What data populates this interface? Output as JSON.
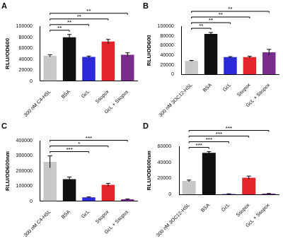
{
  "chart_data": [
    {
      "type": "bar",
      "title": "A",
      "ylabel": "RLU/OD600",
      "categories": [
        "300 nM C4-HSL",
        "BSA",
        "GcL",
        "Ssopox",
        "GcL + Ssopox"
      ],
      "values": [
        46000,
        80000,
        44000,
        72000,
        48000
      ],
      "errors": [
        2000,
        5000,
        1500,
        4000,
        3500
      ],
      "colors": [
        "#c8c8c8",
        "#111111",
        "#2a2ad6",
        "#e3262b",
        "#7b2d8e"
      ],
      "ylim": [
        0,
        100000
      ],
      "yticks": [
        0,
        20000,
        40000,
        60000,
        80000,
        100000
      ],
      "significance": [
        {
          "from": 0,
          "to": 1,
          "label": "**"
        },
        {
          "from": 0,
          "to": 2,
          "label": "**"
        },
        {
          "from": 0,
          "to": 3,
          "label": "**"
        },
        {
          "from": 0,
          "to": 4,
          "label": "**"
        }
      ]
    },
    {
      "type": "bar",
      "title": "B",
      "ylabel": "RLU/OD600",
      "categories": [
        "300 nM 3OC12-HSL",
        "BSA",
        "GcL",
        "Ssopox",
        "GcL + Ssopox"
      ],
      "values": [
        28000,
        84000,
        36000,
        36000,
        46000
      ],
      "errors": [
        1000,
        3000,
        1000,
        1500,
        6000
      ],
      "colors": [
        "#c8c8c8",
        "#111111",
        "#2a2ad6",
        "#e3262b",
        "#7b2d8e"
      ],
      "ylim": [
        0,
        100000
      ],
      "yticks": [
        0,
        20000,
        40000,
        60000,
        80000,
        100000
      ],
      "significance": [
        {
          "from": 0,
          "to": 1,
          "label": "**"
        },
        {
          "from": 0,
          "to": 2,
          "label": "**"
        },
        {
          "from": 0,
          "to": 3,
          "label": "**"
        },
        {
          "from": 0,
          "to": 4,
          "label": "**"
        }
      ]
    },
    {
      "type": "bar",
      "title": "C",
      "ylabel": "RLU/OD600nm",
      "categories": [
        "300 nM C4-HSL",
        "BSA",
        "GcL",
        "Ssopox",
        "GcL + Ssopox"
      ],
      "values": [
        260000,
        145000,
        25000,
        108000,
        12000
      ],
      "errors": [
        40000,
        15000,
        3000,
        10000,
        2000
      ],
      "colors": [
        "#c8c8c8",
        "#111111",
        "#2a2ad6",
        "#e3262b",
        "#7b2d8e"
      ],
      "ylim": [
        0,
        400000
      ],
      "yticks": [
        0,
        100000,
        200000,
        300000,
        400000
      ],
      "significance": [
        {
          "from": 0,
          "to": 2,
          "label": "***"
        },
        {
          "from": 0,
          "to": 3,
          "label": "*"
        },
        {
          "from": 0,
          "to": 4,
          "label": "***"
        }
      ]
    },
    {
      "type": "bar",
      "title": "D",
      "ylabel": "RLU/OD600nm",
      "categories": [
        "300 nM 3OC12-HSL",
        "BSA",
        "GcL",
        "Ssopox",
        "GcL + Ssopox"
      ],
      "values": [
        17000,
        52000,
        700,
        21000,
        1000
      ],
      "errors": [
        1000,
        1500,
        200,
        2000,
        300
      ],
      "colors": [
        "#c8c8c8",
        "#111111",
        "#2a2ad6",
        "#e3262b",
        "#7b2d8e"
      ],
      "ylim": [
        0,
        60000
      ],
      "yticks": [
        0,
        20000,
        40000,
        60000
      ],
      "significance": [
        {
          "from": 0,
          "to": 1,
          "label": "***"
        },
        {
          "from": 0,
          "to": 2,
          "label": "***"
        },
        {
          "from": 0,
          "to": 3,
          "label": "***"
        },
        {
          "from": 0,
          "to": 4,
          "label": "***"
        }
      ]
    }
  ]
}
